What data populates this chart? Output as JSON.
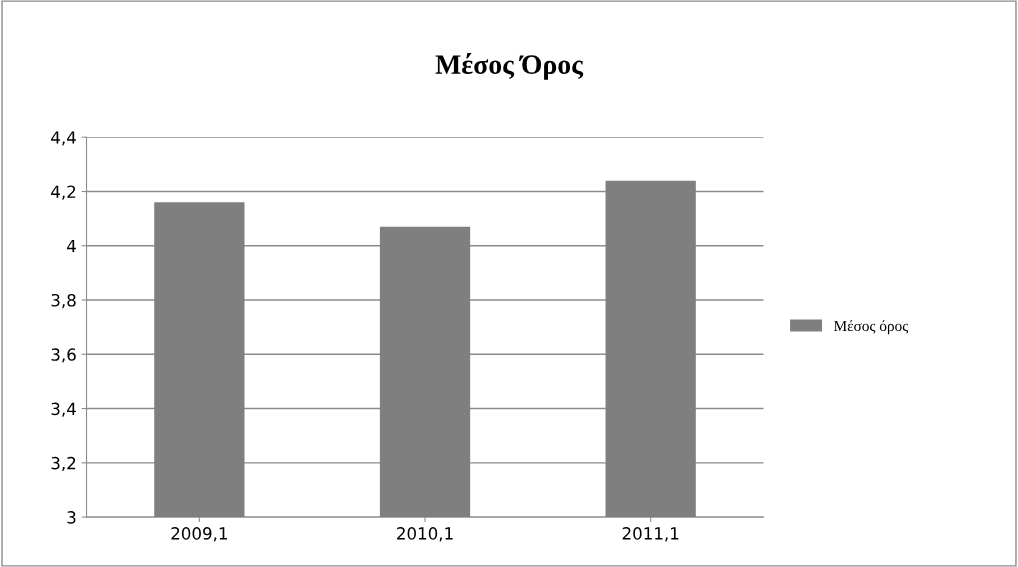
{
  "chart_data": {
    "type": "bar",
    "title": "Μέσος Όρος",
    "categories": [
      "2009,1",
      "2010,1",
      "2011,1"
    ],
    "series": [
      {
        "name": "Μέσος όρος",
        "color": "#7f7f7f",
        "values": [
          4.16,
          4.07,
          4.24
        ]
      }
    ],
    "ylim": [
      3,
      4.4
    ],
    "yticks": [
      3,
      {
        "value": 3.2,
        "label": "3,2"
      },
      {
        "value": 3.4,
        "label": "3,4"
      },
      {
        "value": 3.6,
        "label": "3,6"
      },
      {
        "value": 3.8,
        "label": "3,8"
      },
      4,
      {
        "value": 4.2,
        "label": "4,2"
      },
      {
        "value": 4.4,
        "label": "4,4"
      }
    ],
    "grid": "y",
    "legend": "right"
  }
}
